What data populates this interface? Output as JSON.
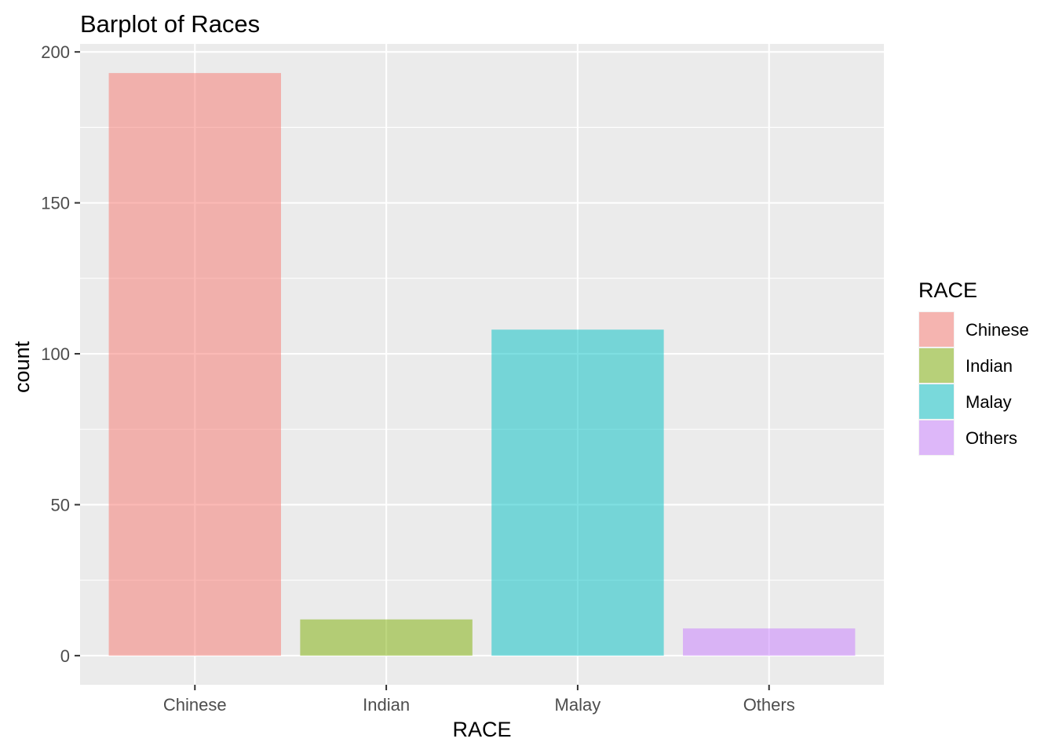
{
  "chart_data": {
    "type": "bar",
    "title": "Barplot of Races",
    "xlabel": "RACE",
    "ylabel": "count",
    "categories": [
      "Chinese",
      "Indian",
      "Malay",
      "Others"
    ],
    "values": [
      193,
      12,
      108,
      9
    ],
    "ylim": [
      -9.65,
      202.65
    ],
    "yticks": [
      0,
      50,
      100,
      150,
      200
    ],
    "grid": true,
    "legend": {
      "title": "RACE",
      "position": "right",
      "entries": [
        "Chinese",
        "Indian",
        "Malay",
        "Others"
      ]
    },
    "colors": [
      "#F8766D",
      "#7CAE00",
      "#00BFC4",
      "#C77CFF"
    ],
    "bar_opacity": 0.5,
    "panel_background": "#EBEBEB",
    "grid_color": "#FFFFFF"
  }
}
